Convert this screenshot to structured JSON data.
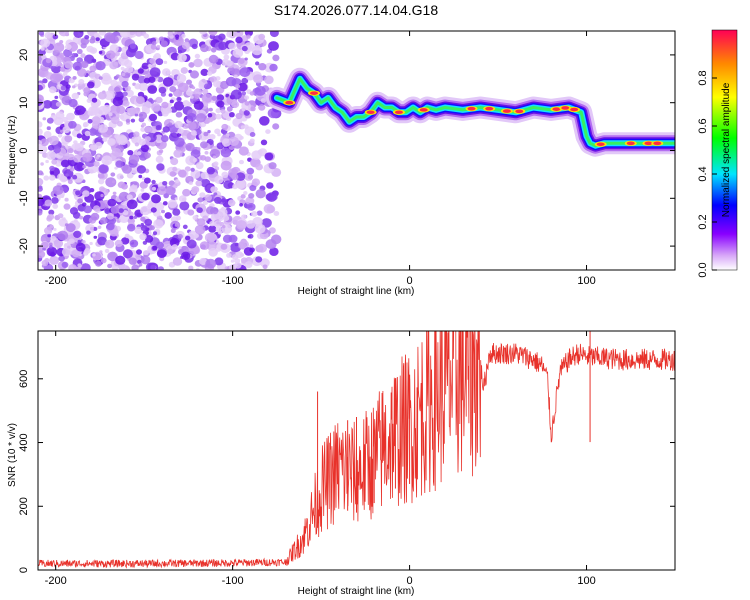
{
  "chart_data": [
    {
      "type": "heatmap",
      "title": "S174.2026.077.14.04.G18",
      "xlabel": "Height of straight line (km)",
      "ylabel": "Frequency (Hz)",
      "xlim": [
        -210,
        150
      ],
      "ylim": [
        -25,
        25
      ],
      "xticks": [
        -200,
        -100,
        0,
        100
      ],
      "yticks": [
        -20,
        -10,
        0,
        10,
        20
      ],
      "xtick_labels": [
        "-200",
        "-100",
        "0",
        "100"
      ],
      "ytick_labels": [
        "-20",
        "-10",
        "0",
        "10",
        "20"
      ],
      "noise_region_x": [
        -210,
        -75
      ],
      "ridge": {
        "x": [
          -75,
          -68,
          -62,
          -58,
          -54,
          -50,
          -46,
          -42,
          -38,
          -34,
          -30,
          -26,
          -22,
          -18,
          -14,
          -10,
          -6,
          -2,
          2,
          6,
          10,
          15,
          20,
          30,
          40,
          50,
          60,
          70,
          80,
          90,
          97,
          100,
          102,
          105,
          110,
          120,
          130,
          140,
          150
        ],
        "y": [
          11,
          10,
          15,
          13,
          12,
          10,
          11,
          9,
          8,
          6,
          7,
          7,
          8,
          10,
          9,
          9,
          8,
          8,
          9,
          8,
          9,
          8.5,
          9,
          8.5,
          9,
          8.5,
          8,
          9,
          8.5,
          9,
          8,
          3,
          1.5,
          1,
          1.5,
          1.5,
          1.5,
          1.5,
          1.5
        ],
        "peak_x": [
          -68,
          -54,
          -22,
          -6,
          8,
          35,
          45,
          55,
          62,
          83,
          88,
          93,
          108,
          125,
          135,
          140
        ]
      },
      "colorbar": {
        "label": "Normalized spectral amplitude",
        "ticks": [
          "0.0",
          "0.2",
          "0.4",
          "0.6",
          "0.8"
        ],
        "tick_values": [
          0,
          0.2,
          0.4,
          0.6,
          0.8
        ],
        "range": [
          0,
          1
        ]
      }
    },
    {
      "type": "line",
      "xlabel": "Height of straight line (km)",
      "ylabel": "SNR (10 * v/v)",
      "xlim": [
        -210,
        150
      ],
      "ylim": [
        0,
        750
      ],
      "xticks": [
        -200,
        -100,
        0,
        100
      ],
      "yticks": [
        0,
        200,
        400,
        600
      ],
      "xtick_labels": [
        "-200",
        "-100",
        "0",
        "100"
      ],
      "ytick_labels": [
        "0",
        "200",
        "400",
        "600"
      ],
      "series": [
        {
          "name": "SNR",
          "color": "#e8312a",
          "x": [
            -210,
            -150,
            -100,
            -70,
            -60,
            -50,
            -40,
            -30,
            -20,
            -10,
            0,
            10,
            20,
            30,
            40,
            42,
            45,
            60,
            70,
            75,
            78,
            80,
            85,
            90,
            95,
            100,
            120,
            140,
            150
          ],
          "y": [
            20,
            20,
            22,
            25,
            100,
            250,
            320,
            300,
            350,
            420,
            450,
            520,
            580,
            620,
            640,
            570,
            680,
            680,
            660,
            640,
            600,
            420,
            620,
            660,
            680,
            670,
            660,
            660,
            660
          ],
          "spikes": [
            {
              "x": -52,
              "y": 560
            },
            {
              "x": -35,
              "y": 470
            },
            {
              "x": -30,
              "y": 480
            },
            {
              "x": -20,
              "y": 440
            },
            {
              "x": -8,
              "y": 540
            },
            {
              "x": 0,
              "y": 600
            },
            {
              "x": 102,
              "y": 760
            }
          ]
        }
      ]
    }
  ]
}
